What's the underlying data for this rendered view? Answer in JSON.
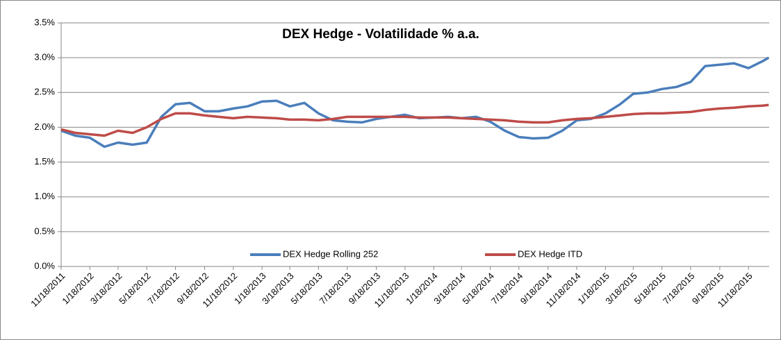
{
  "chart_data": {
    "type": "line",
    "title": "DEX Hedge - Volatilidade % a.a.",
    "x": [
      "11/18/2011",
      "12/18/2011",
      "1/18/2012",
      "2/18/2012",
      "3/18/2012",
      "4/18/2012",
      "5/18/2012",
      "6/18/2012",
      "7/18/2012",
      "8/18/2012",
      "9/18/2012",
      "10/18/2012",
      "11/18/2012",
      "12/18/2012",
      "1/18/2013",
      "2/18/2013",
      "3/18/2013",
      "4/18/2013",
      "5/18/2013",
      "6/18/2013",
      "7/18/2013",
      "8/18/2013",
      "9/18/2013",
      "10/18/2013",
      "11/18/2013",
      "12/18/2013",
      "1/18/2014",
      "2/18/2014",
      "3/18/2014",
      "4/18/2014",
      "5/18/2014",
      "6/18/2014",
      "7/18/2014",
      "8/18/2014",
      "9/18/2014",
      "10/18/2014",
      "11/18/2014",
      "12/18/2014",
      "1/18/2015",
      "2/18/2015",
      "3/18/2015",
      "4/18/2015",
      "5/18/2015",
      "6/18/2015",
      "7/18/2015",
      "8/18/2015",
      "9/18/2015",
      "10/18/2015",
      "11/18/2015",
      "12/18/2015",
      "12/31/2015"
    ],
    "series": [
      {
        "name": "DEX Hedge Rolling 252",
        "color": "#4a7ebb",
        "values": [
          1.95,
          1.88,
          1.85,
          1.72,
          1.78,
          1.75,
          1.78,
          2.15,
          2.33,
          2.35,
          2.23,
          2.23,
          2.27,
          2.3,
          2.37,
          2.38,
          2.3,
          2.35,
          2.2,
          2.1,
          2.08,
          2.07,
          2.12,
          2.15,
          2.18,
          2.13,
          2.14,
          2.15,
          2.13,
          2.15,
          2.08,
          1.95,
          1.86,
          1.84,
          1.85,
          1.95,
          2.1,
          2.12,
          2.2,
          2.33,
          2.48,
          2.5,
          2.55,
          2.58,
          2.65,
          2.88,
          2.9,
          2.92,
          2.85,
          2.95,
          3.0
        ]
      },
      {
        "name": "DEX Hedge ITD",
        "color": "#be4b48",
        "values": [
          1.97,
          1.92,
          1.9,
          1.88,
          1.95,
          1.92,
          2.0,
          2.12,
          2.2,
          2.2,
          2.17,
          2.15,
          2.13,
          2.15,
          2.14,
          2.13,
          2.11,
          2.11,
          2.1,
          2.12,
          2.15,
          2.15,
          2.15,
          2.15,
          2.15,
          2.14,
          2.14,
          2.14,
          2.13,
          2.12,
          2.11,
          2.1,
          2.08,
          2.07,
          2.07,
          2.1,
          2.12,
          2.13,
          2.15,
          2.17,
          2.19,
          2.2,
          2.2,
          2.21,
          2.22,
          2.25,
          2.27,
          2.28,
          2.3,
          2.31,
          2.32
        ]
      }
    ],
    "xlim": [
      "11/18/2011",
      "1/1/2016"
    ],
    "xticks": [
      "11/18/2011",
      "1/18/2012",
      "3/18/2012",
      "5/18/2012",
      "7/18/2012",
      "9/18/2012",
      "11/18/2012",
      "1/18/2013",
      "3/18/2013",
      "5/18/2013",
      "7/18/2013",
      "9/18/2013",
      "11/18/2013",
      "1/18/2014",
      "3/18/2014",
      "5/18/2014",
      "7/18/2014",
      "9/18/2014",
      "11/18/2014",
      "1/18/2015",
      "3/18/2015",
      "5/18/2015",
      "7/18/2015",
      "9/18/2015",
      "11/18/2015"
    ],
    "ylim": [
      0,
      3.5
    ],
    "yticks": [
      {
        "value": 0,
        "label": "0.0%"
      },
      {
        "value": 0.5,
        "label": "0.5%"
      },
      {
        "value": 1,
        "label": "1.0%"
      },
      {
        "value": 1.5,
        "label": "1.5%"
      },
      {
        "value": 2,
        "label": "2.0%"
      },
      {
        "value": 2.5,
        "label": "2.5%"
      },
      {
        "value": 3,
        "label": "3.0%"
      },
      {
        "value": 3.5,
        "label": "3.5%"
      }
    ],
    "grid": true,
    "legend": "bottom"
  }
}
